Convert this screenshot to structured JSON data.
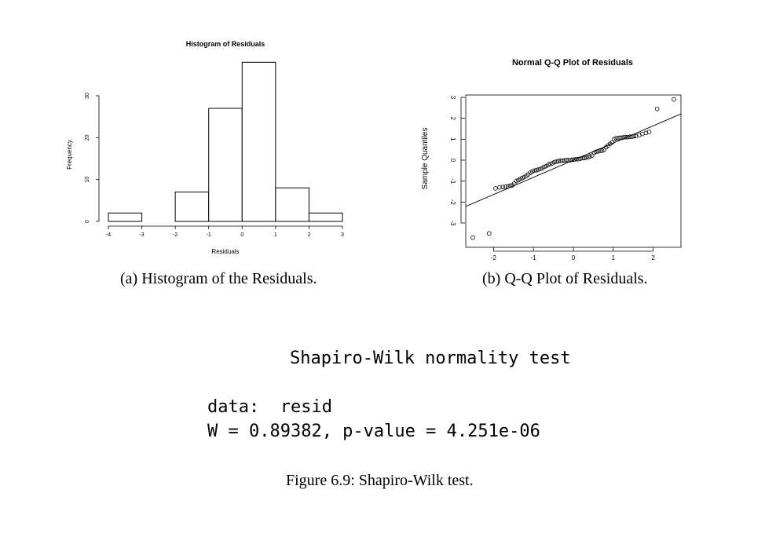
{
  "chart_data": [
    {
      "type": "bar",
      "title": "Histogram of Residuals",
      "xlabel": "Residuals",
      "ylabel": "Frequency",
      "bins": [
        [
          -4,
          -3
        ],
        [
          -3,
          -2
        ],
        [
          -2,
          -1
        ],
        [
          -1,
          0
        ],
        [
          0,
          1
        ],
        [
          1,
          2
        ],
        [
          2,
          3
        ]
      ],
      "values": [
        2,
        0,
        7,
        27,
        38,
        8,
        2
      ],
      "xticks": [
        "-4",
        "-3",
        "-2",
        "-1",
        "0",
        "1",
        "2",
        "3"
      ],
      "yticks": [
        "0",
        "10",
        "20",
        "30"
      ],
      "xlim": [
        -4,
        3
      ],
      "ylim": [
        0,
        30
      ],
      "caption": "(a) Histogram of the Residuals."
    },
    {
      "type": "scatter",
      "title": "Normal Q-Q Plot of Residuals",
      "xlabel": "",
      "ylabel": "Sample Quantiles",
      "xticks": [
        "-2",
        "-1",
        "0",
        "1",
        "2"
      ],
      "yticks": [
        "-3",
        "-2",
        "-1",
        "0",
        "1",
        "2",
        "3"
      ],
      "xlim": [
        -2.5,
        2.5
      ],
      "ylim": [
        -3.5,
        3.0
      ],
      "line": {
        "intercept": 0.0,
        "slope": 0.82
      },
      "points": [
        [
          -2.52,
          -3.7
        ],
        [
          -2.11,
          -3.5
        ],
        [
          -1.95,
          -1.35
        ],
        [
          -1.85,
          -1.3
        ],
        [
          -1.77,
          -1.28
        ],
        [
          -1.7,
          -1.27
        ],
        [
          -1.64,
          -1.25
        ],
        [
          -1.58,
          -1.22
        ],
        [
          -1.53,
          -1.2
        ],
        [
          -1.48,
          -1.12
        ],
        [
          -1.43,
          -1.0
        ],
        [
          -1.38,
          -0.95
        ],
        [
          -1.33,
          -0.9
        ],
        [
          -1.28,
          -0.85
        ],
        [
          -1.23,
          -0.8
        ],
        [
          -1.18,
          -0.75
        ],
        [
          -1.13,
          -0.68
        ],
        [
          -1.08,
          -0.6
        ],
        [
          -1.03,
          -0.55
        ],
        [
          -0.98,
          -0.5
        ],
        [
          -0.93,
          -0.48
        ],
        [
          -0.88,
          -0.45
        ],
        [
          -0.83,
          -0.42
        ],
        [
          -0.78,
          -0.38
        ],
        [
          -0.73,
          -0.32
        ],
        [
          -0.68,
          -0.28
        ],
        [
          -0.63,
          -0.22
        ],
        [
          -0.58,
          -0.18
        ],
        [
          -0.53,
          -0.15
        ],
        [
          -0.48,
          -0.1
        ],
        [
          -0.43,
          -0.07
        ],
        [
          -0.38,
          -0.05
        ],
        [
          -0.33,
          -0.03
        ],
        [
          -0.28,
          -0.02
        ],
        [
          -0.23,
          -0.02
        ],
        [
          -0.18,
          0.0
        ],
        [
          -0.13,
          0.0
        ],
        [
          -0.08,
          0.0
        ],
        [
          -0.03,
          0.02
        ],
        [
          0.02,
          0.02
        ],
        [
          0.07,
          0.05
        ],
        [
          0.12,
          0.05
        ],
        [
          0.17,
          0.07
        ],
        [
          0.22,
          0.1
        ],
        [
          0.27,
          0.1
        ],
        [
          0.32,
          0.12
        ],
        [
          0.37,
          0.15
        ],
        [
          0.42,
          0.18
        ],
        [
          0.47,
          0.22
        ],
        [
          0.52,
          0.35
        ],
        [
          0.57,
          0.4
        ],
        [
          0.62,
          0.42
        ],
        [
          0.67,
          0.45
        ],
        [
          0.72,
          0.45
        ],
        [
          0.77,
          0.5
        ],
        [
          0.82,
          0.62
        ],
        [
          0.87,
          0.7
        ],
        [
          0.92,
          0.78
        ],
        [
          0.97,
          0.85
        ],
        [
          1.02,
          1.0
        ],
        [
          1.07,
          1.05
        ],
        [
          1.12,
          1.05
        ],
        [
          1.17,
          1.07
        ],
        [
          1.22,
          1.07
        ],
        [
          1.27,
          1.1
        ],
        [
          1.32,
          1.1
        ],
        [
          1.37,
          1.1
        ],
        [
          1.42,
          1.12
        ],
        [
          1.47,
          1.12
        ],
        [
          1.52,
          1.15
        ],
        [
          1.57,
          1.15
        ],
        [
          1.65,
          1.2
        ],
        [
          1.73,
          1.25
        ],
        [
          1.82,
          1.3
        ],
        [
          1.9,
          1.35
        ],
        [
          2.1,
          2.45
        ],
        [
          2.52,
          2.9
        ]
      ],
      "caption": "(b) Q-Q Plot of Residuals."
    }
  ],
  "test_output": {
    "heading": "Shapiro-Wilk normality test",
    "data_line": "data:  resid",
    "stat_line": "W = 0.89382, p-value = 4.251e-06"
  },
  "figure_caption": "Figure 6.9: Shapiro-Wilk test."
}
